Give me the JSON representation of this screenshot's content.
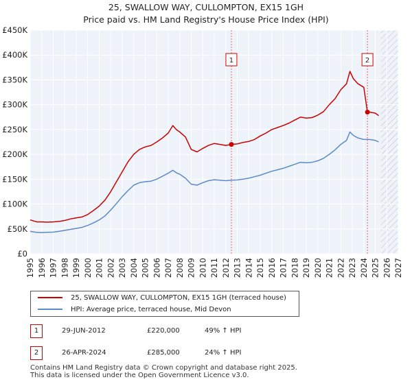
{
  "title": {
    "line1": "25, SWALLOW WAY, CULLOMPTON, EX15 1GH",
    "line2": "Price paid vs. HM Land Registry's House Price Index (HPI)"
  },
  "chart_data": {
    "type": "line",
    "y_ticks": [
      "£0",
      "£50K",
      "£100K",
      "£150K",
      "£200K",
      "£250K",
      "£300K",
      "£350K",
      "£400K",
      "£450K"
    ],
    "x_ticks": [
      "1995",
      "1996",
      "1997",
      "1998",
      "1999",
      "2000",
      "2001",
      "2002",
      "2003",
      "2004",
      "2005",
      "2006",
      "2007",
      "2008",
      "2009",
      "2010",
      "2011",
      "2012",
      "2013",
      "2014",
      "2015",
      "2016",
      "2017",
      "2018",
      "2019",
      "2020",
      "2021",
      "2022",
      "2023",
      "2024",
      "2025",
      "2026",
      "2027"
    ],
    "xlim": [
      1995,
      2027
    ],
    "ylim": [
      0,
      450000
    ],
    "grid": true,
    "future_hatch_from": 2025.5,
    "series": [
      {
        "name": "25, SWALLOW WAY, CULLOMPTON, EX15 1GH (terraced house)",
        "color": "#cc0000",
        "points": [
          [
            1995.0,
            68000
          ],
          [
            1995.3,
            66000
          ],
          [
            1995.6,
            64000
          ],
          [
            1996.0,
            64000
          ],
          [
            1996.5,
            63500
          ],
          [
            1997.0,
            64000
          ],
          [
            1997.5,
            65000
          ],
          [
            1998.0,
            67000
          ],
          [
            1998.5,
            70000
          ],
          [
            1999.0,
            72000
          ],
          [
            1999.5,
            74000
          ],
          [
            2000.0,
            79000
          ],
          [
            2000.5,
            87000
          ],
          [
            2001.0,
            96000
          ],
          [
            2001.5,
            108000
          ],
          [
            2002.0,
            125000
          ],
          [
            2002.5,
            145000
          ],
          [
            2003.0,
            165000
          ],
          [
            2003.5,
            185000
          ],
          [
            2004.0,
            200000
          ],
          [
            2004.5,
            210000
          ],
          [
            2005.0,
            215000
          ],
          [
            2005.5,
            218000
          ],
          [
            2006.0,
            225000
          ],
          [
            2006.5,
            233000
          ],
          [
            2007.0,
            243000
          ],
          [
            2007.4,
            258000
          ],
          [
            2007.7,
            250000
          ],
          [
            2008.0,
            245000
          ],
          [
            2008.5,
            235000
          ],
          [
            2009.0,
            210000
          ],
          [
            2009.5,
            205000
          ],
          [
            2010.0,
            212000
          ],
          [
            2010.5,
            218000
          ],
          [
            2011.0,
            222000
          ],
          [
            2011.5,
            220000
          ],
          [
            2012.0,
            218000
          ],
          [
            2012.49,
            220000
          ],
          [
            2013.0,
            221000
          ],
          [
            2013.5,
            224000
          ],
          [
            2014.0,
            226000
          ],
          [
            2014.5,
            230000
          ],
          [
            2015.0,
            237000
          ],
          [
            2015.5,
            243000
          ],
          [
            2016.0,
            250000
          ],
          [
            2016.5,
            254000
          ],
          [
            2017.0,
            258000
          ],
          [
            2017.5,
            263000
          ],
          [
            2018.0,
            269000
          ],
          [
            2018.5,
            275000
          ],
          [
            2019.0,
            273000
          ],
          [
            2019.5,
            274000
          ],
          [
            2020.0,
            279000
          ],
          [
            2020.5,
            286000
          ],
          [
            2021.0,
            300000
          ],
          [
            2021.5,
            312000
          ],
          [
            2022.0,
            330000
          ],
          [
            2022.5,
            342000
          ],
          [
            2022.8,
            367000
          ],
          [
            2023.1,
            352000
          ],
          [
            2023.5,
            342000
          ],
          [
            2024.0,
            335000
          ],
          [
            2024.32,
            285000
          ],
          [
            2024.5,
            285000
          ],
          [
            2025.0,
            283000
          ],
          [
            2025.3,
            278000
          ]
        ]
      },
      {
        "name": "HPI: Average price, terraced house, Mid Devon",
        "color": "#5b8ac6",
        "points": [
          [
            1995.0,
            45000
          ],
          [
            1995.5,
            43000
          ],
          [
            1996.0,
            42500
          ],
          [
            1996.5,
            43000
          ],
          [
            1997.0,
            43500
          ],
          [
            1997.5,
            45000
          ],
          [
            1998.0,
            47000
          ],
          [
            1998.5,
            49000
          ],
          [
            1999.0,
            51000
          ],
          [
            1999.5,
            53000
          ],
          [
            2000.0,
            57000
          ],
          [
            2000.5,
            62000
          ],
          [
            2001.0,
            68000
          ],
          [
            2001.5,
            76000
          ],
          [
            2002.0,
            88000
          ],
          [
            2002.5,
            101000
          ],
          [
            2003.0,
            115000
          ],
          [
            2003.5,
            127000
          ],
          [
            2004.0,
            138000
          ],
          [
            2004.5,
            143000
          ],
          [
            2005.0,
            145000
          ],
          [
            2005.5,
            146000
          ],
          [
            2006.0,
            150000
          ],
          [
            2006.5,
            156000
          ],
          [
            2007.0,
            162000
          ],
          [
            2007.4,
            168000
          ],
          [
            2007.7,
            163000
          ],
          [
            2008.0,
            160000
          ],
          [
            2008.5,
            152000
          ],
          [
            2009.0,
            140000
          ],
          [
            2009.5,
            138000
          ],
          [
            2010.0,
            143000
          ],
          [
            2010.5,
            147000
          ],
          [
            2011.0,
            149000
          ],
          [
            2011.5,
            148000
          ],
          [
            2012.0,
            147000
          ],
          [
            2012.5,
            148000
          ],
          [
            2013.0,
            148500
          ],
          [
            2013.5,
            150000
          ],
          [
            2014.0,
            152000
          ],
          [
            2014.5,
            155000
          ],
          [
            2015.0,
            158000
          ],
          [
            2015.5,
            162000
          ],
          [
            2016.0,
            166000
          ],
          [
            2016.5,
            169000
          ],
          [
            2017.0,
            172000
          ],
          [
            2017.5,
            176000
          ],
          [
            2018.0,
            180000
          ],
          [
            2018.5,
            184000
          ],
          [
            2019.0,
            183000
          ],
          [
            2019.5,
            184000
          ],
          [
            2020.0,
            187000
          ],
          [
            2020.5,
            192000
          ],
          [
            2021.0,
            200000
          ],
          [
            2021.5,
            209000
          ],
          [
            2022.0,
            220000
          ],
          [
            2022.5,
            228000
          ],
          [
            2022.8,
            245000
          ],
          [
            2023.1,
            238000
          ],
          [
            2023.5,
            233000
          ],
          [
            2024.0,
            230000
          ],
          [
            2024.5,
            230000
          ],
          [
            2025.0,
            228000
          ],
          [
            2025.3,
            225000
          ]
        ]
      }
    ],
    "markers": [
      {
        "label": "1",
        "x": 2012.49,
        "y": 220000
      },
      {
        "label": "2",
        "x": 2024.32,
        "y": 285000
      }
    ]
  },
  "legend": {
    "items": [
      {
        "label": "25, SWALLOW WAY, CULLOMPTON, EX15 1GH (terraced house)",
        "color": "#cc0000"
      },
      {
        "label": "HPI: Average price, terraced house, Mid Devon",
        "color": "#5b8ac6"
      }
    ]
  },
  "sales": [
    {
      "num": "1",
      "date": "29-JUN-2012",
      "price": "£220,000",
      "hpi": "49% ↑ HPI"
    },
    {
      "num": "2",
      "date": "26-APR-2024",
      "price": "£285,000",
      "hpi": "24% ↑ HPI"
    }
  ],
  "footer": {
    "line1": "Contains HM Land Registry data © Crown copyright and database right 2025.",
    "line2": "This data is licensed under the Open Government Licence v3.0."
  }
}
